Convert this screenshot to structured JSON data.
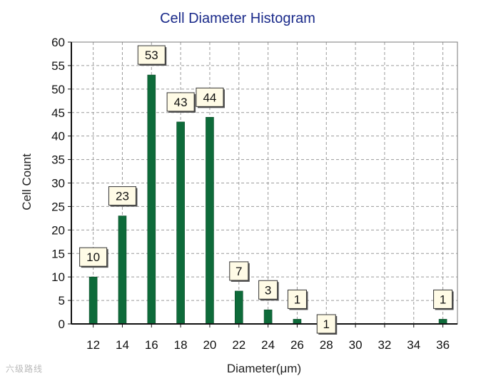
{
  "chart_data": {
    "type": "bar",
    "title": "Cell Diameter Histogram",
    "xlabel": "Diameter(μm)",
    "ylabel": "Cell Count",
    "x_ticks": [
      12,
      14,
      16,
      18,
      20,
      22,
      24,
      26,
      28,
      30,
      32,
      34,
      36
    ],
    "xlim": [
      10.5,
      37
    ],
    "ylim": [
      0,
      60
    ],
    "y_ticks": [
      0,
      5,
      10,
      15,
      20,
      25,
      30,
      35,
      40,
      45,
      50,
      55,
      60
    ],
    "bars": [
      {
        "x": 12,
        "value": 10
      },
      {
        "x": 14,
        "value": 23
      },
      {
        "x": 16,
        "value": 53
      },
      {
        "x": 18,
        "value": 43
      },
      {
        "x": 20,
        "value": 44
      },
      {
        "x": 22,
        "value": 7
      },
      {
        "x": 24,
        "value": 3
      },
      {
        "x": 26,
        "value": 1
      },
      {
        "x": 28,
        "value": 1
      },
      {
        "x": 36,
        "value": 1
      }
    ],
    "grid": true,
    "colors": {
      "bar": "#0e6b3a",
      "title": "#1a2a8a",
      "label_box": "#fffbe6"
    }
  },
  "watermark": "六级路线"
}
